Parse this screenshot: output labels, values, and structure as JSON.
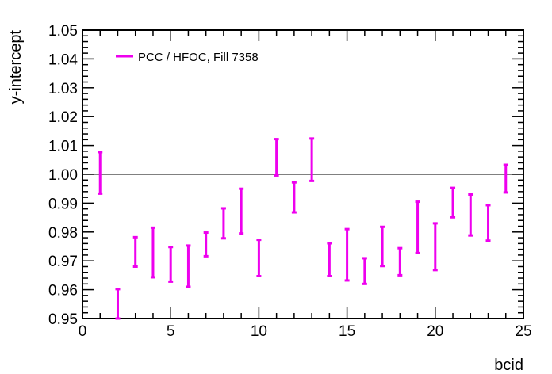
{
  "chart_data": {
    "type": "scatter",
    "title": "",
    "xlabel": "bcid",
    "ylabel": "y-intercept",
    "xlim": [
      0,
      25
    ],
    "ylim": [
      0.95,
      1.05
    ],
    "xticks": [
      "0",
      "5",
      "10",
      "15",
      "20",
      "25"
    ],
    "yticks": [
      "0.95",
      "0.96",
      "0.97",
      "0.98",
      "0.99",
      "1.00",
      "1.01",
      "1.02",
      "1.03",
      "1.04",
      "1.05"
    ],
    "reference_line": 1.0,
    "grid": false,
    "legend_position": "top-left",
    "series": [
      {
        "name": "PCC / HFOC,  Fill 7358",
        "color": "#ee00ee",
        "points": [
          {
            "x": 1,
            "y": 1.0005,
            "lo": 0.9933,
            "hi": 1.0077
          },
          {
            "x": 2,
            "y": 0.955,
            "lo": 0.95,
            "hi": 0.9602
          },
          {
            "x": 3,
            "y": 0.9731,
            "lo": 0.968,
            "hi": 0.9782
          },
          {
            "x": 4,
            "y": 0.9729,
            "lo": 0.9643,
            "hi": 0.9815
          },
          {
            "x": 5,
            "y": 0.9688,
            "lo": 0.9628,
            "hi": 0.9748
          },
          {
            "x": 6,
            "y": 0.9682,
            "lo": 0.961,
            "hi": 0.9753
          },
          {
            "x": 7,
            "y": 0.9757,
            "lo": 0.9716,
            "hi": 0.9798
          },
          {
            "x": 8,
            "y": 0.983,
            "lo": 0.9778,
            "hi": 0.9882
          },
          {
            "x": 9,
            "y": 0.9872,
            "lo": 0.9795,
            "hi": 0.995
          },
          {
            "x": 10,
            "y": 0.971,
            "lo": 0.9647,
            "hi": 0.9773
          },
          {
            "x": 11,
            "y": 1.0059,
            "lo": 0.9996,
            "hi": 1.0122
          },
          {
            "x": 12,
            "y": 0.992,
            "lo": 0.9868,
            "hi": 0.9972
          },
          {
            "x": 13,
            "y": 1.0051,
            "lo": 0.9977,
            "hi": 1.0124
          },
          {
            "x": 14,
            "y": 0.9704,
            "lo": 0.9647,
            "hi": 0.9761
          },
          {
            "x": 15,
            "y": 0.9721,
            "lo": 0.9632,
            "hi": 0.981
          },
          {
            "x": 16,
            "y": 0.9665,
            "lo": 0.962,
            "hi": 0.9709
          },
          {
            "x": 17,
            "y": 0.975,
            "lo": 0.9682,
            "hi": 0.9818
          },
          {
            "x": 18,
            "y": 0.9697,
            "lo": 0.965,
            "hi": 0.9744
          },
          {
            "x": 19,
            "y": 0.9816,
            "lo": 0.9727,
            "hi": 0.9905
          },
          {
            "x": 20,
            "y": 0.9749,
            "lo": 0.9668,
            "hi": 0.983
          },
          {
            "x": 21,
            "y": 0.9902,
            "lo": 0.9851,
            "hi": 0.9953
          },
          {
            "x": 22,
            "y": 0.9859,
            "lo": 0.9788,
            "hi": 0.993
          },
          {
            "x": 23,
            "y": 0.9832,
            "lo": 0.977,
            "hi": 0.9893
          },
          {
            "x": 24,
            "y": 0.9985,
            "lo": 0.9937,
            "hi": 1.0033
          }
        ]
      }
    ]
  }
}
